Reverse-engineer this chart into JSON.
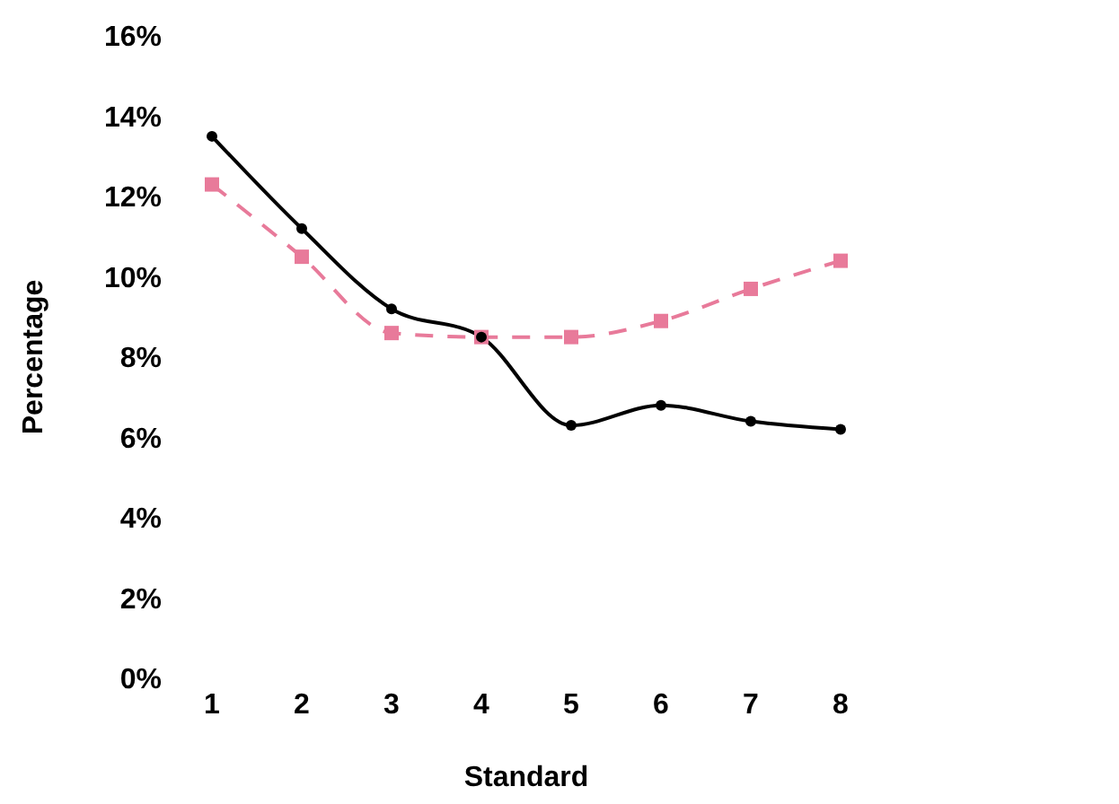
{
  "chart_data": {
    "type": "line",
    "xlabel": "Standard",
    "ylabel": "Percentage",
    "categories": [
      "1",
      "2",
      "3",
      "4",
      "5",
      "6",
      "7",
      "8"
    ],
    "series": [
      {
        "color": "#000000",
        "marker": "circle",
        "line_style": "solid",
        "values": [
          13.5,
          11.2,
          9.2,
          8.5,
          6.3,
          6.8,
          6.4,
          6.2
        ]
      },
      {
        "color": "#e87a9a",
        "marker": "square",
        "line_style": "dashed",
        "values": [
          12.3,
          10.5,
          8.6,
          8.5,
          8.5,
          8.9,
          9.7,
          10.4
        ]
      }
    ],
    "ylim": [
      0,
      16
    ],
    "yticks": [
      {
        "value": 0,
        "label": "0%"
      },
      {
        "value": 2,
        "label": "2%"
      },
      {
        "value": 4,
        "label": "4%"
      },
      {
        "value": 6,
        "label": "6%"
      },
      {
        "value": 8,
        "label": "8%"
      },
      {
        "value": 10,
        "label": "10%"
      },
      {
        "value": 12,
        "label": "12%"
      },
      {
        "value": 14,
        "label": "14%"
      },
      {
        "value": 16,
        "label": "16%"
      }
    ],
    "grid": false,
    "legend": false
  }
}
